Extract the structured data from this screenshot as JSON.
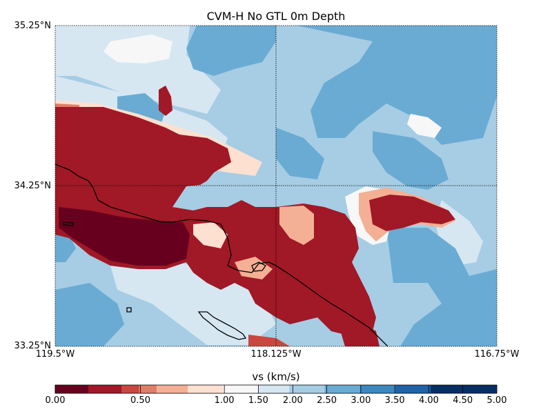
{
  "title": "CVM-H No GTL 0m Depth",
  "lat_ticks": [
    "35.25°N",
    "34.25°N",
    "33.25°N"
  ],
  "lon_ticks": [
    "119.5°W",
    "118.125°W",
    "116.75°W"
  ],
  "colorbar": {
    "label": "vs (km/s)",
    "ticks": [
      "0.00",
      "0.50",
      "1.00",
      "1.50",
      "2.00",
      "2.50",
      "3.00",
      "3.50",
      "4.00",
      "4.50",
      "5.00"
    ],
    "colors": [
      "#67001f",
      "#a11826",
      "#c94741",
      "#e07f67",
      "#f4b094",
      "#fde0d0",
      "#f7f7f7",
      "#d6e7f2",
      "#a6cde4",
      "#6aabd3",
      "#3c88bf",
      "#2062a6",
      "#063064"
    ]
  },
  "map_colors": {
    "base": "#a6cde4",
    "light": "#d6e7f2",
    "mid": "#6aabd3",
    "white": "#f7f7f7",
    "dark_red": "#67001f",
    "red": "#a11826",
    "salmon": "#e07f67",
    "pink": "#f4b094",
    "light_pink": "#fde0d0"
  }
}
